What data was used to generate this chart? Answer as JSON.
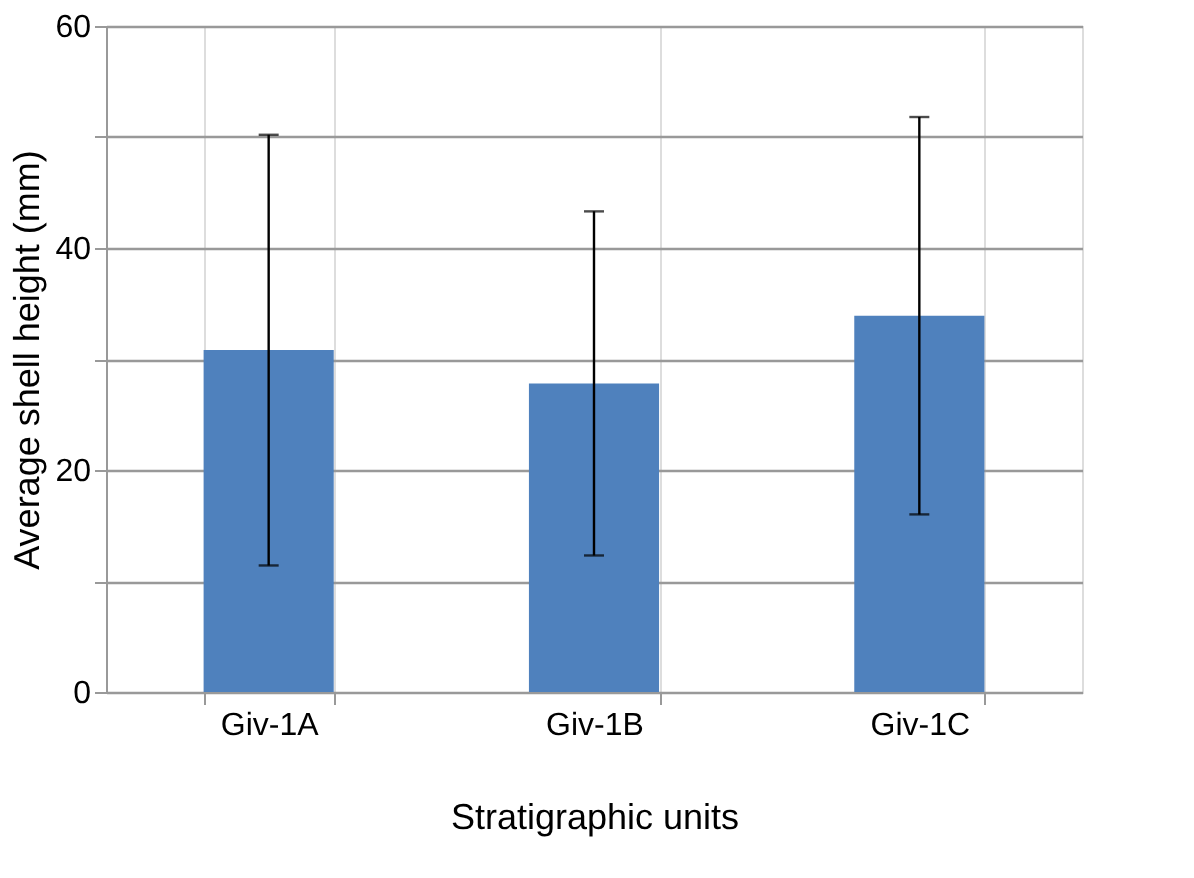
{
  "chart_data": {
    "type": "bar",
    "xlabel": "Stratigraphic units",
    "ylabel": "Average shell height (mm)",
    "categories": [
      "Giv-1A",
      "Giv-1B",
      "Giv-1C"
    ],
    "values": [
      30.8,
      27.8,
      33.9
    ],
    "errors": [
      19.4,
      15.5,
      17.9
    ],
    "color": "#4f81bd",
    "ylim": [
      0,
      60
    ],
    "yticks": [
      0,
      {
        "value": 10,
        "label": null
      },
      20,
      {
        "value": 30,
        "label": null
      },
      40,
      {
        "value": 50,
        "label": null
      },
      60
    ],
    "grid": true
  }
}
